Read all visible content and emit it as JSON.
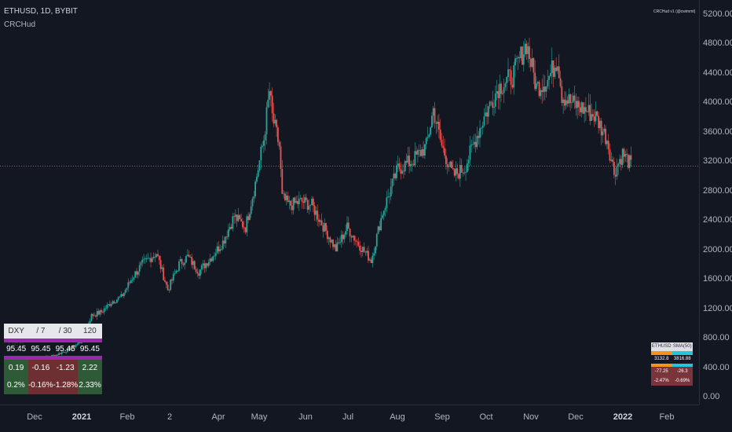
{
  "header": {
    "symbol_title": "ETHUSD, 1D, BYBIT",
    "indicator_name": "CRCHud",
    "watermark": "CRCHud v1 (@cwimmt)"
  },
  "colors": {
    "background": "#131722",
    "up": "#26a69a",
    "down": "#ef5350",
    "accent_purple": "#9c27b0",
    "accent_orange": "#f7931a",
    "accent_cyan": "#26c6da"
  },
  "chart_data": {
    "type": "candlestick",
    "y_ticks": [
      "5200.00",
      "4800.00",
      "4400.00",
      "4000.00",
      "3600.00",
      "3200.00",
      "2800.00",
      "2400.00",
      "2000.00",
      "1600.00",
      "1200.00",
      "800.00",
      "400.00",
      "0.00"
    ],
    "x_ticks": [
      {
        "label": "Dec",
        "bold": false
      },
      {
        "label": "2021",
        "bold": true
      },
      {
        "label": "Feb",
        "bold": false
      },
      {
        "label": "2",
        "bold": false
      },
      {
        "label": "Apr",
        "bold": false
      },
      {
        "label": "May",
        "bold": false
      },
      {
        "label": "Jun",
        "bold": false
      },
      {
        "label": "Jul",
        "bold": false
      },
      {
        "label": "Aug",
        "bold": false
      },
      {
        "label": "Sep",
        "bold": false
      },
      {
        "label": "Oct",
        "bold": false
      },
      {
        "label": "Nov",
        "bold": false
      },
      {
        "label": "Dec",
        "bold": false
      },
      {
        "label": "2022",
        "bold": true
      },
      {
        "label": "Feb",
        "bold": false
      }
    ],
    "ylim": [
      0,
      5400
    ],
    "grid": false,
    "last_price": 3130,
    "price_path": [
      [
        "2020-11-27",
        520
      ],
      [
        "2020-12-10",
        560
      ],
      [
        "2020-12-20",
        640
      ],
      [
        "2020-12-28",
        740
      ],
      [
        "2021-01-05",
        1100
      ],
      [
        "2021-01-12",
        1150
      ],
      [
        "2021-01-20",
        1300
      ],
      [
        "2021-01-26",
        1350
      ],
      [
        "2021-02-04",
        1650
      ],
      [
        "2021-02-10",
        1800
      ],
      [
        "2021-02-20",
        1950
      ],
      [
        "2021-02-28",
        1450
      ],
      [
        "2021-03-08",
        1800
      ],
      [
        "2021-03-14",
        1900
      ],
      [
        "2021-03-22",
        1700
      ],
      [
        "2021-03-31",
        1900
      ],
      [
        "2021-04-08",
        2100
      ],
      [
        "2021-04-16",
        2450
      ],
      [
        "2021-04-24",
        2300
      ],
      [
        "2021-05-01",
        2900
      ],
      [
        "2021-05-07",
        3500
      ],
      [
        "2021-05-11",
        4150
      ],
      [
        "2021-05-13",
        3800
      ],
      [
        "2021-05-18",
        3400
      ],
      [
        "2021-05-20",
        2700
      ],
      [
        "2021-05-25",
        2600
      ],
      [
        "2021-06-03",
        2650
      ],
      [
        "2021-06-10",
        2600
      ],
      [
        "2021-06-20",
        2250
      ],
      [
        "2021-06-27",
        2000
      ],
      [
        "2021-07-05",
        2300
      ],
      [
        "2021-07-12",
        2100
      ],
      [
        "2021-07-22",
        1850
      ],
      [
        "2021-07-30",
        2500
      ],
      [
        "2021-08-10",
        3100
      ],
      [
        "2021-08-20",
        3200
      ],
      [
        "2021-08-30",
        3400
      ],
      [
        "2021-09-04",
        3900
      ],
      [
        "2021-09-10",
        3400
      ],
      [
        "2021-09-18",
        3000
      ],
      [
        "2021-09-26",
        3100
      ],
      [
        "2021-10-02",
        3400
      ],
      [
        "2021-10-10",
        3800
      ],
      [
        "2021-10-20",
        4200
      ],
      [
        "2021-10-30",
        4350
      ],
      [
        "2021-11-09",
        4800
      ],
      [
        "2021-11-16",
        4200
      ],
      [
        "2021-11-24",
        4300
      ],
      [
        "2021-12-01",
        4600
      ],
      [
        "2021-12-04",
        4100
      ],
      [
        "2021-12-10",
        4000
      ],
      [
        "2021-12-20",
        3900
      ],
      [
        "2021-12-28",
        3800
      ],
      [
        "2022-01-05",
        3500
      ],
      [
        "2022-01-10",
        3050
      ],
      [
        "2022-01-16",
        3300
      ],
      [
        "2022-01-22",
        3150
      ]
    ]
  },
  "dxy_table": {
    "headers": [
      "DXY USD",
      "/ 7",
      "/ 30",
      "120"
    ],
    "values": [
      "95.45",
      "95.45",
      "95.45",
      "95.45"
    ],
    "changes": [
      {
        "text": "0.19",
        "dir": "pos"
      },
      {
        "text": "-0.16",
        "dir": "neg"
      },
      {
        "text": "-1.23",
        "dir": "neg"
      },
      {
        "text": "2.22",
        "dir": "pos"
      }
    ],
    "percents": [
      {
        "text": "0.2%",
        "dir": "pos"
      },
      {
        "text": "-0.16%",
        "dir": "neg"
      },
      {
        "text": "-1.28%",
        "dir": "neg"
      },
      {
        "text": "2.33%",
        "dir": "pos"
      }
    ]
  },
  "eth_table": {
    "headers": [
      "ETHUSD",
      "SMA(50)"
    ],
    "values": [
      "3132.8",
      "3816.88"
    ],
    "changes": [
      "-77.25",
      "-26.3"
    ],
    "percents": [
      "-2.47%",
      "-0.69%"
    ]
  }
}
